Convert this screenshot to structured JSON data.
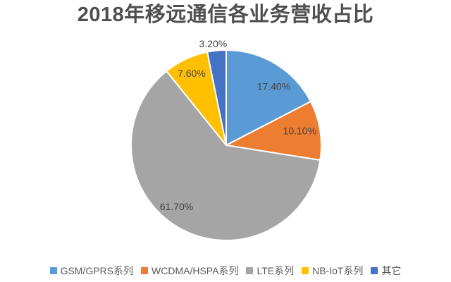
{
  "title": {
    "text": "2018年移远通信各业务营收占比",
    "color": "#4f4f4f"
  },
  "chart_data": {
    "type": "pie",
    "title": "2018年移远通信各业务营收占比",
    "unit": "percent",
    "start_angle_deg": 0,
    "direction": "clockwise",
    "legend_position": "bottom",
    "background": "#ffffff",
    "label_color": "#444444",
    "legend_text_color": "#595959",
    "slice_border_color": "#ffffff",
    "slices": [
      {
        "label": "GSM/GPRS系列",
        "value": 17.4,
        "display": "17.40%",
        "color": "#5B9BD5",
        "label_placement": "inside"
      },
      {
        "label": "WCDMA/HSPA系列",
        "value": 10.1,
        "display": "10.10%",
        "color": "#ED7D31",
        "label_placement": "inside"
      },
      {
        "label": "LTE系列",
        "value": 61.7,
        "display": "61.70%",
        "color": "#A5A5A5",
        "label_placement": "inside"
      },
      {
        "label": "NB-IoT系列",
        "value": 7.6,
        "display": "7.60%",
        "color": "#FFC000",
        "label_placement": "inside"
      },
      {
        "label": "其它",
        "value": 3.2,
        "display": "3.20%",
        "color": "#4472C4",
        "label_placement": "outside"
      }
    ]
  }
}
